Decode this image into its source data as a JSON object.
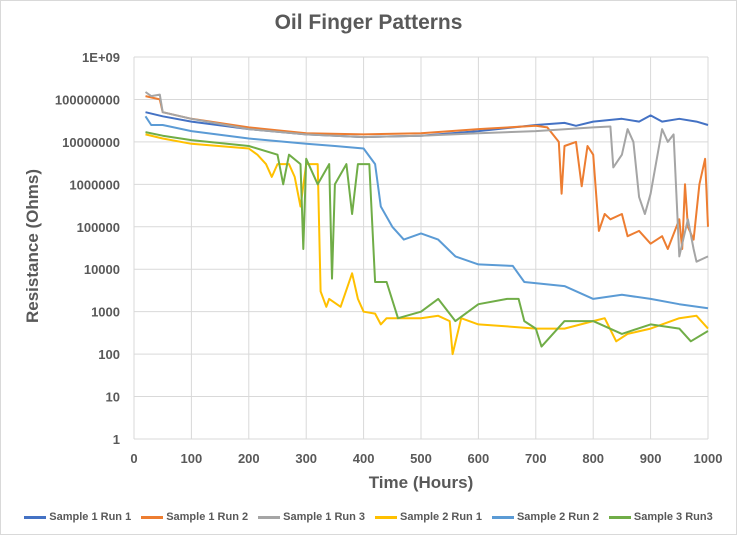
{
  "chart_data": {
    "type": "line",
    "title": "Oil Finger Patterns",
    "xlabel": "Time (Hours)",
    "ylabel": "Resistance (Ohms)",
    "xlim": [
      0,
      1000
    ],
    "ylim": [
      1,
      1000000000
    ],
    "yscale": "log",
    "grid": true,
    "legend": "bottom",
    "xticks": [
      "0",
      "100",
      "200",
      "300",
      "400",
      "500",
      "600",
      "700",
      "800",
      "900",
      "1000"
    ],
    "yticks": [
      "1",
      "10",
      "100",
      "1000",
      "10000",
      "100000",
      "1000000",
      "10000000",
      "100000000",
      "1E+09"
    ],
    "series": [
      {
        "name": "Sample 1 Run 1",
        "color": "#4472c4",
        "points": [
          [
            20,
            50000000.0
          ],
          [
            50,
            40000000.0
          ],
          [
            100,
            30000000.0
          ],
          [
            200,
            20000000.0
          ],
          [
            300,
            15000000.0
          ],
          [
            400,
            13000000.0
          ],
          [
            500,
            14000000.0
          ],
          [
            600,
            18000000.0
          ],
          [
            700,
            25000000.0
          ],
          [
            750,
            28000000.0
          ],
          [
            770,
            24000000.0
          ],
          [
            800,
            30000000.0
          ],
          [
            850,
            35000000.0
          ],
          [
            880,
            30000000.0
          ],
          [
            900,
            42000000.0
          ],
          [
            920,
            30000000.0
          ],
          [
            950,
            35000000.0
          ],
          [
            980,
            30000000.0
          ],
          [
            1000,
            25000000.0
          ]
        ]
      },
      {
        "name": "Sample 1 Run 2",
        "color": "#ed7d31",
        "points": [
          [
            20,
            120000000.0
          ],
          [
            45,
            100000000.0
          ],
          [
            50,
            50000000.0
          ],
          [
            100,
            35000000.0
          ],
          [
            200,
            22000000.0
          ],
          [
            300,
            16000000.0
          ],
          [
            400,
            15000000.0
          ],
          [
            500,
            16000000.0
          ],
          [
            600,
            20000000.0
          ],
          [
            700,
            24000000.0
          ],
          [
            720,
            22000000.0
          ],
          [
            740,
            10000000.0
          ],
          [
            745,
            600000.0
          ],
          [
            750,
            8000000.0
          ],
          [
            770,
            10000000.0
          ],
          [
            780,
            900000.0
          ],
          [
            790,
            8000000.0
          ],
          [
            800,
            5000000.0
          ],
          [
            810,
            80000.0
          ],
          [
            820,
            200000.0
          ],
          [
            830,
            150000.0
          ],
          [
            850,
            200000.0
          ],
          [
            860,
            60000.0
          ],
          [
            880,
            80000.0
          ],
          [
            900,
            40000.0
          ],
          [
            920,
            60000.0
          ],
          [
            930,
            30000.0
          ],
          [
            950,
            150000.0
          ],
          [
            955,
            30000.0
          ],
          [
            960,
            1000000.0
          ],
          [
            965,
            100000.0
          ],
          [
            975,
            50000.0
          ],
          [
            985,
            1000000.0
          ],
          [
            995,
            4000000.0
          ],
          [
            1000,
            100000.0
          ]
        ]
      },
      {
        "name": "Sample 1 Run 3",
        "color": "#a5a5a5",
        "points": [
          [
            20,
            150000000.0
          ],
          [
            30,
            120000000.0
          ],
          [
            45,
            130000000.0
          ],
          [
            50,
            50000000.0
          ],
          [
            100,
            35000000.0
          ],
          [
            200,
            20000000.0
          ],
          [
            300,
            15000000.0
          ],
          [
            400,
            13000000.0
          ],
          [
            500,
            14000000.0
          ],
          [
            600,
            16000000.0
          ],
          [
            700,
            18000000.0
          ],
          [
            800,
            22000000.0
          ],
          [
            830,
            23000000.0
          ],
          [
            835,
            2500000.0
          ],
          [
            850,
            5000000.0
          ],
          [
            860,
            20000000.0
          ],
          [
            870,
            10000000.0
          ],
          [
            880,
            500000.0
          ],
          [
            890,
            200000.0
          ],
          [
            900,
            600000.0
          ],
          [
            920,
            20000000.0
          ],
          [
            930,
            10000000.0
          ],
          [
            940,
            15000000.0
          ],
          [
            950,
            20000.0
          ],
          [
            965,
            150000.0
          ],
          [
            975,
            30000.0
          ],
          [
            980,
            15000.0
          ],
          [
            1000,
            20000.0
          ]
        ]
      },
      {
        "name": "Sample 2 Run 1",
        "color": "#ffc000",
        "points": [
          [
            20,
            15000000.0
          ],
          [
            50,
            12000000.0
          ],
          [
            100,
            9000000.0
          ],
          [
            200,
            7000000.0
          ],
          [
            215,
            5000000.0
          ],
          [
            230,
            3000000.0
          ],
          [
            240,
            1500000.0
          ],
          [
            250,
            3000000.0
          ],
          [
            270,
            3000000.0
          ],
          [
            280,
            1500000.0
          ],
          [
            290,
            300000.0
          ],
          [
            300,
            3000000.0
          ],
          [
            310,
            3000000.0
          ],
          [
            320,
            3000000.0
          ],
          [
            325,
            3000.0
          ],
          [
            335,
            1300.0
          ],
          [
            340,
            2000.0
          ],
          [
            360,
            1300.0
          ],
          [
            380,
            8000.0
          ],
          [
            390,
            2000.0
          ],
          [
            400,
            1000.0
          ],
          [
            420,
            900
          ],
          [
            430,
            500
          ],
          [
            440,
            700
          ],
          [
            470,
            700
          ],
          [
            500,
            700
          ],
          [
            530,
            800
          ],
          [
            550,
            600
          ],
          [
            555,
            100
          ],
          [
            570,
            700
          ],
          [
            600,
            500
          ],
          [
            650,
            450
          ],
          [
            700,
            400
          ],
          [
            750,
            400
          ],
          [
            800,
            600
          ],
          [
            820,
            700
          ],
          [
            840,
            200
          ],
          [
            860,
            300
          ],
          [
            900,
            400
          ],
          [
            950,
            700
          ],
          [
            980,
            800
          ],
          [
            1000,
            400
          ]
        ]
      },
      {
        "name": "Sample 2 Run 2",
        "color": "#5b9bd5",
        "points": [
          [
            20,
            40000000.0
          ],
          [
            30,
            25000000.0
          ],
          [
            50,
            25000000.0
          ],
          [
            100,
            18000000.0
          ],
          [
            200,
            12000000.0
          ],
          [
            300,
            9000000.0
          ],
          [
            350,
            8000000.0
          ],
          [
            400,
            7000000.0
          ],
          [
            420,
            3000000.0
          ],
          [
            430,
            300000.0
          ],
          [
            450,
            100000.0
          ],
          [
            470,
            50000.0
          ],
          [
            500,
            70000.0
          ],
          [
            530,
            50000.0
          ],
          [
            560,
            20000.0
          ],
          [
            600,
            13000.0
          ],
          [
            660,
            12000.0
          ],
          [
            680,
            5000.0
          ],
          [
            750,
            4000.0
          ],
          [
            800,
            2000.0
          ],
          [
            850,
            2500.0
          ],
          [
            900,
            2000.0
          ],
          [
            950,
            1500.0
          ],
          [
            1000,
            1200.0
          ]
        ]
      },
      {
        "name": "Sample 3 Run3",
        "color": "#70ad47",
        "points": [
          [
            20,
            17000000.0
          ],
          [
            50,
            14000000.0
          ],
          [
            100,
            11000000.0
          ],
          [
            200,
            8000000.0
          ],
          [
            250,
            5000000.0
          ],
          [
            260,
            1000000.0
          ],
          [
            270,
            5000000.0
          ],
          [
            290,
            3000000.0
          ],
          [
            295,
            30000.0
          ],
          [
            300,
            4000000.0
          ],
          [
            320,
            1000000.0
          ],
          [
            340,
            3000000.0
          ],
          [
            345,
            6000.0
          ],
          [
            350,
            1000000.0
          ],
          [
            370,
            3000000.0
          ],
          [
            380,
            200000.0
          ],
          [
            390,
            3000000.0
          ],
          [
            410,
            3000000.0
          ],
          [
            420,
            5000.0
          ],
          [
            440,
            5000.0
          ],
          [
            460,
            700
          ],
          [
            500,
            1000.0
          ],
          [
            530,
            2000.0
          ],
          [
            560,
            600
          ],
          [
            600,
            1500.0
          ],
          [
            650,
            2000.0
          ],
          [
            670,
            2000.0
          ],
          [
            680,
            600
          ],
          [
            700,
            400
          ],
          [
            710,
            150
          ],
          [
            750,
            600
          ],
          [
            800,
            600
          ],
          [
            850,
            300
          ],
          [
            900,
            500
          ],
          [
            950,
            400
          ],
          [
            970,
            200
          ],
          [
            1000,
            350
          ]
        ]
      }
    ]
  }
}
